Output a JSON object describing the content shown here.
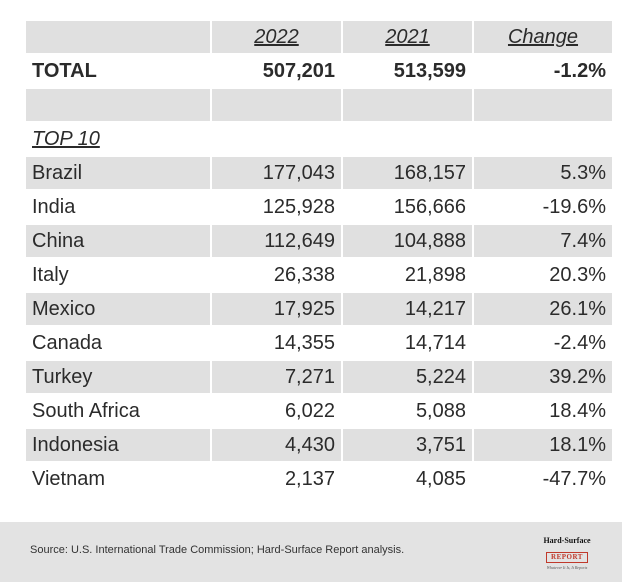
{
  "chart_data": {
    "type": "table",
    "columns": [
      "",
      "2022",
      "2021",
      "Change"
    ],
    "total": {
      "label": "TOTAL",
      "v2022": "507,201",
      "v2021": "513,599",
      "change": "-1.2%"
    },
    "section_label": "TOP 10",
    "rows": [
      {
        "country": "Brazil",
        "v2022": "177,043",
        "v2021": "168,157",
        "change": "5.3%"
      },
      {
        "country": "India",
        "v2022": "125,928",
        "v2021": "156,666",
        "change": "-19.6%"
      },
      {
        "country": "China",
        "v2022": "112,649",
        "v2021": "104,888",
        "change": "7.4%"
      },
      {
        "country": "Italy",
        "v2022": "26,338",
        "v2021": "21,898",
        "change": "20.3%"
      },
      {
        "country": "Mexico",
        "v2022": "17,925",
        "v2021": "14,217",
        "change": "26.1%"
      },
      {
        "country": "Canada",
        "v2022": "14,355",
        "v2021": "14,714",
        "change": "-2.4%"
      },
      {
        "country": "Turkey",
        "v2022": "7,271",
        "v2021": "5,224",
        "change": "39.2%"
      },
      {
        "country": "South Africa",
        "v2022": "6,022",
        "v2021": "5,088",
        "change": "18.4%"
      },
      {
        "country": "Indonesia",
        "v2022": "4,430",
        "v2021": "3,751",
        "change": "18.1%"
      },
      {
        "country": "Vietnam",
        "v2022": "2,137",
        "v2021": "4,085",
        "change": "-47.7%"
      }
    ]
  },
  "footer": {
    "source": "Source: U.S. International Trade Commission; Hard-Surface Report analysis.",
    "logo_line1": "Hard-Surface",
    "logo_line2": "REPORT",
    "logo_line3": "Whatever It Is, It Reports"
  },
  "colors": {
    "shade": "#e0e0e0",
    "footer_bg": "#e3e3e3",
    "logo_red": "#c0392b"
  }
}
